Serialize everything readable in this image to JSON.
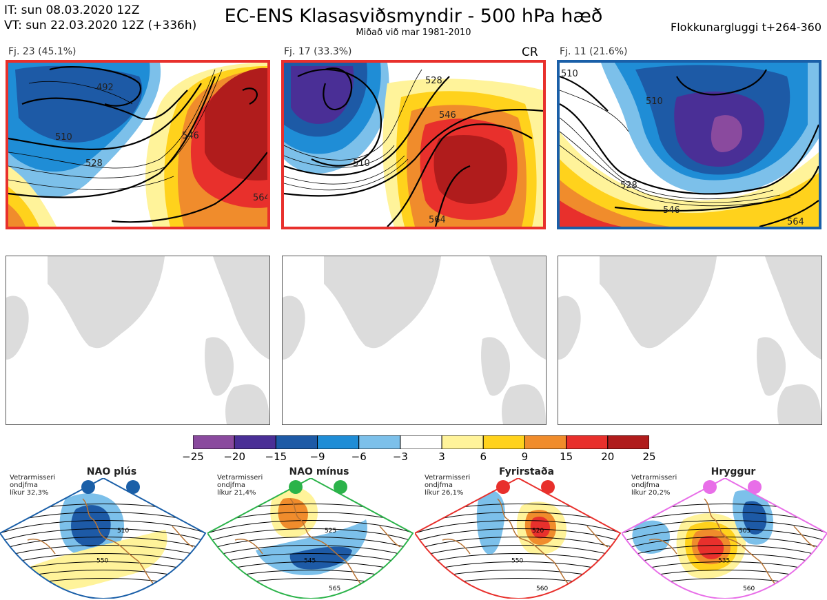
{
  "header": {
    "it_line": "IT: sun 08.03.2020 12Z",
    "vt_line": "VT: sun 22.03.2020 12Z  (+336h)",
    "title": "EC-ENS Klasasviðsmyndir - 500 hPa hæð",
    "subtitle": "Miðað við mar 1981-2010",
    "window": "Flokkunargluggi t+264-360"
  },
  "panels": [
    {
      "label": "Fj. 23 (45.1%)",
      "border_color": "#e8302c",
      "contours": [
        "492",
        "510",
        "528",
        "546",
        "564"
      ]
    },
    {
      "label": "Fj. 17 (33.3%)",
      "border_color": "#e8302c",
      "badge": "CR",
      "contours": [
        "510",
        "528",
        "546",
        "564"
      ]
    },
    {
      "label": "Fj. 11 (21.6%)",
      "border_color": "#1a5fa8",
      "contours": [
        "510",
        "528",
        "546",
        "564"
      ]
    }
  ],
  "legend": {
    "colors": [
      "#8a4a9e",
      "#4a2f96",
      "#1d5aa6",
      "#1f8dd6",
      "#7cc0ea",
      "#ffffff",
      "#fff39a",
      "#ffd21c",
      "#f08c2c",
      "#e8302c",
      "#b01c1c"
    ],
    "labels": [
      "−25",
      "−20",
      "−15",
      "−9",
      "−6",
      "−3",
      "3",
      "6",
      "9",
      "15",
      "20",
      "25"
    ]
  },
  "regimes": [
    {
      "title": "NAO plús",
      "note": [
        "Vetrarmisseri",
        "ondjfma",
        "líkur 32,3%"
      ],
      "color": "#1a5fa8",
      "contours": [
        "510",
        "550"
      ]
    },
    {
      "title": "NAO mínus",
      "note": [
        "Vetrarmisseri",
        "ondjfma",
        "líkur 21,4%"
      ],
      "color": "#2bb34a",
      "contours": [
        "525",
        "545",
        "565"
      ]
    },
    {
      "title": "Fyrirstaða",
      "note": [
        "Vetrarmisseri",
        "ondjfma",
        "líkur 26,1%"
      ],
      "color": "#e8302c",
      "contours": [
        "520",
        "550",
        "560"
      ]
    },
    {
      "title": "Hryggur",
      "note": [
        "Vetrarmisseri",
        "ondjfma",
        "líkur 20,2%"
      ],
      "color": "#e86ee8",
      "contours": [
        "505",
        "535",
        "560"
      ]
    }
  ]
}
